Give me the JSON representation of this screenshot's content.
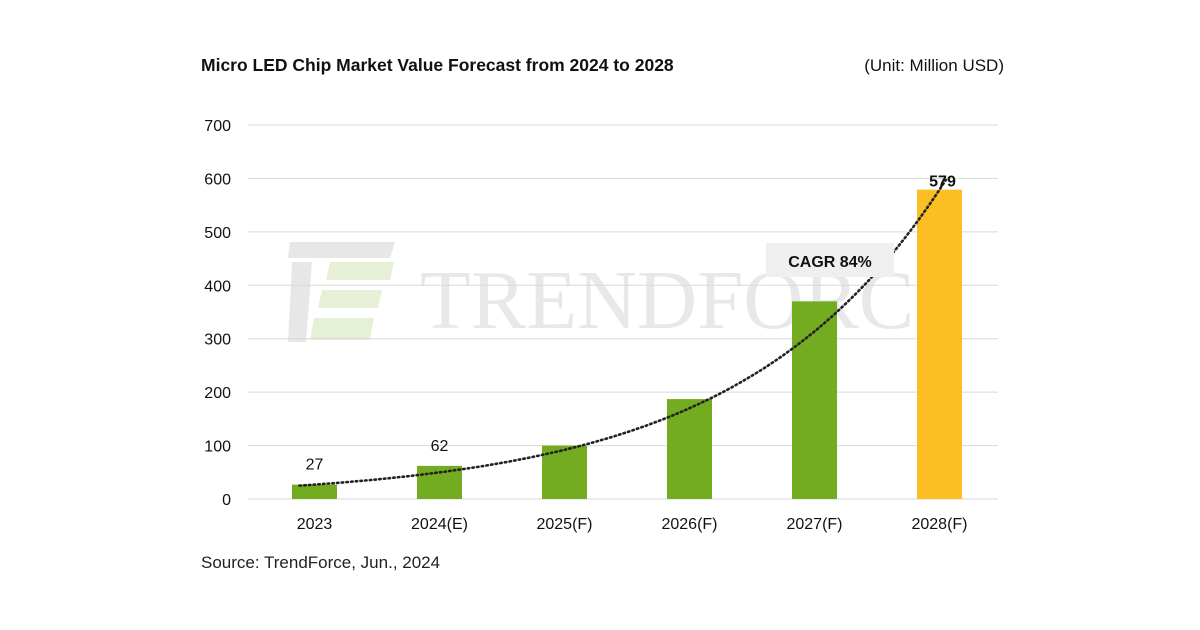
{
  "title": "Micro LED Chip Market Value Forecast from 2024 to 2028",
  "unit_label": "(Unit: Million USD)",
  "source": "Source: TrendForce, Jun., 2024",
  "watermark": "TRENDFORCE",
  "annotation": "CAGR 84%",
  "colors": {
    "actual": "#74ac21",
    "forecast_final": "#fbbf24",
    "grid": "#d9d9d9"
  },
  "chart_data": {
    "type": "bar",
    "title": "Micro LED Chip Market Value Forecast from 2024 to 2028",
    "ylabel": "",
    "xlabel": "",
    "ylim": [
      0,
      700
    ],
    "yticks": [
      0,
      100,
      200,
      300,
      400,
      500,
      600,
      700
    ],
    "grid": true,
    "categories": [
      "2023",
      "2024(E)",
      "2025(F)",
      "2026(F)",
      "2027(F)",
      "2028(F)"
    ],
    "values": [
      27,
      62,
      100,
      187,
      370,
      579
    ],
    "data_labels": [
      "27",
      "62",
      "",
      "",
      "",
      "579"
    ],
    "trendline": "exponential",
    "annotations": [
      "CAGR 84%"
    ]
  }
}
